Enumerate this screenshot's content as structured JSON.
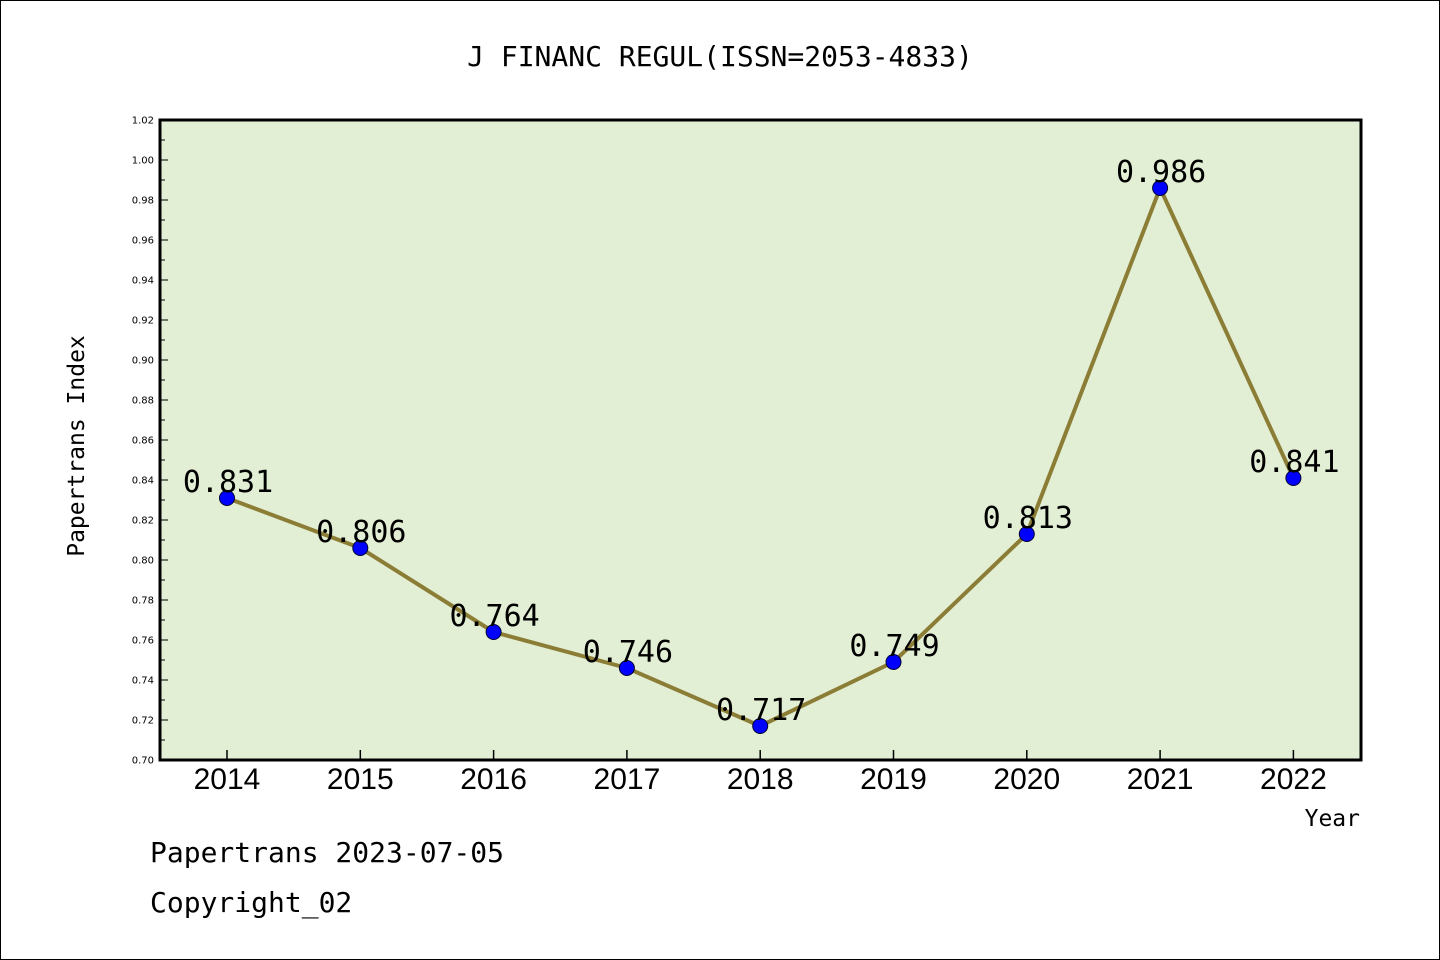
{
  "chart_data": {
    "type": "line",
    "title": "J FINANC REGUL(ISSN=2053-4833)",
    "xlabel": "Year",
    "ylabel": "Papertrans Index",
    "categories": [
      "2014",
      "2015",
      "2016",
      "2017",
      "2018",
      "2019",
      "2020",
      "2021",
      "2022"
    ],
    "values": [
      0.831,
      0.806,
      0.764,
      0.746,
      0.717,
      0.749,
      0.813,
      0.986,
      0.841
    ],
    "data_labels": [
      "0.831",
      "0.806",
      "0.764",
      "0.746",
      "0.717",
      "0.749",
      "0.813",
      "0.986",
      "0.841"
    ],
    "ylim": [
      0.7,
      1.02
    ],
    "yticks": [
      "0.70",
      "0.72",
      "0.74",
      "0.76",
      "0.78",
      "0.80",
      "0.82",
      "0.84",
      "0.86",
      "0.88",
      "0.90",
      "0.92",
      "0.94",
      "0.96",
      "0.98",
      "1.00",
      "1.02"
    ],
    "grid": false,
    "colors": {
      "plot_background": "#e2efd4",
      "line": "#8b7d35",
      "marker": "#0000ff"
    }
  },
  "footer": {
    "line1": "Papertrans 2023-07-05",
    "line2": "Copyright_02"
  }
}
